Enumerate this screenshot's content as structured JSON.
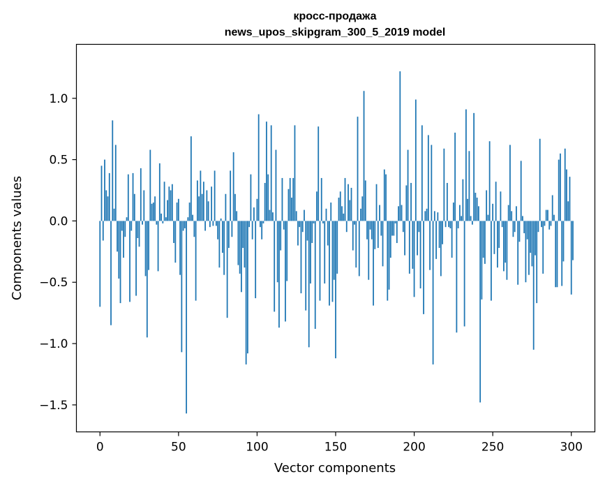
{
  "chart_data": {
    "type": "bar",
    "title_line1": "кросс-продажа",
    "title_line2": "news_upos_skipgram_300_5_2019 model",
    "xlabel": "Vector components",
    "ylabel": "Components values",
    "xlim": [
      -15,
      315
    ],
    "ylim": [
      -1.72,
      1.44
    ],
    "xticks": [
      0,
      50,
      100,
      150,
      200,
      250,
      300
    ],
    "xtick_labels": [
      "0",
      "50",
      "100",
      "150",
      "200",
      "250",
      "300"
    ],
    "yticks": [
      -1.5,
      -1.0,
      -0.5,
      0.0,
      0.5,
      1.0
    ],
    "ytick_labels": [
      "−1.5",
      "−1.0",
      "−0.5",
      "0.0",
      "0.5",
      "1.0"
    ],
    "color": "#1f77b4",
    "values": [
      -0.7,
      0.45,
      -0.16,
      0.5,
      0.25,
      0.2,
      0.39,
      -0.85,
      0.82,
      0.1,
      0.62,
      -0.25,
      -0.47,
      -0.67,
      -0.08,
      -0.3,
      -0.13,
      0.03,
      0.38,
      -0.66,
      -0.08,
      0.39,
      0.22,
      -0.61,
      -0.14,
      -0.21,
      0.43,
      -0.03,
      0.25,
      -0.45,
      -0.95,
      -0.4,
      0.58,
      0.14,
      0.15,
      0.2,
      -0.03,
      -0.41,
      0.47,
      0.06,
      -0.02,
      0.32,
      0.03,
      0.17,
      0.28,
      0.25,
      0.3,
      -0.18,
      -0.34,
      0.15,
      0.18,
      -0.44,
      -1.07,
      -0.08,
      -0.06,
      -1.57,
      0.03,
      0.15,
      0.69,
      0.05,
      -0.13,
      -0.65,
      0.33,
      0.2,
      0.41,
      0.22,
      0.32,
      -0.08,
      0.25,
      0.16,
      -0.05,
      0.28,
      -0.04,
      0.41,
      -0.04,
      -0.15,
      -0.38,
      0.02,
      -0.26,
      -0.44,
      0.22,
      -0.79,
      -0.22,
      0.41,
      -0.13,
      0.56,
      0.22,
      0.08,
      -0.36,
      -0.43,
      -0.58,
      -0.22,
      -0.38,
      -1.17,
      -1.08,
      -0.05,
      0.38,
      -0.15,
      0.11,
      -0.63,
      0.18,
      0.87,
      -0.05,
      -0.15,
      -0.02,
      0.31,
      0.81,
      0.38,
      0.09,
      0.78,
      0.07,
      -0.74,
      0.58,
      -0.5,
      -0.87,
      -0.24,
      0.35,
      -0.07,
      -0.82,
      -0.49,
      0.26,
      0.35,
      0.19,
      0.35,
      0.78,
      0.08,
      -0.2,
      -0.05,
      -0.59,
      -0.09,
      0.09,
      -0.73,
      -0.16,
      -1.03,
      -0.51,
      -0.18,
      -0.02,
      -0.88,
      0.24,
      0.77,
      -0.65,
      0.35,
      -0.02,
      -0.51,
      0.1,
      -0.2,
      -0.69,
      0.15,
      -0.66,
      -0.48,
      -1.12,
      -0.43,
      0.19,
      0.24,
      0.12,
      0.06,
      0.35,
      -0.09,
      0.3,
      0.17,
      0.27,
      -0.24,
      -0.03,
      -0.38,
      0.85,
      -0.45,
      0.1,
      0.2,
      1.06,
      0.33,
      -0.15,
      -0.48,
      -0.07,
      -0.15,
      -0.69,
      -0.23,
      0.3,
      -0.22,
      0.13,
      -0.12,
      -0.37,
      0.42,
      0.38,
      -0.65,
      -0.56,
      -0.3,
      -0.12,
      -0.12,
      -0.02,
      -0.18,
      0.12,
      1.22,
      0.13,
      -0.09,
      -0.28,
      0.29,
      0.58,
      -0.43,
      0.31,
      -0.39,
      -0.62,
      0.99,
      -0.28,
      -0.09,
      -0.55,
      0.78,
      -0.76,
      0.08,
      0.1,
      0.7,
      -0.4,
      0.62,
      -1.17,
      0.08,
      -0.31,
      0.07,
      -0.22,
      -0.45,
      -0.19,
      0.59,
      -0.05,
      0.31,
      -0.05,
      -0.06,
      -0.3,
      0.15,
      0.72,
      -0.91,
      -0.06,
      0.13,
      0.04,
      0.34,
      -0.86,
      0.91,
      0.18,
      0.57,
      0.04,
      -0.03,
      0.88,
      0.23,
      0.19,
      0.12,
      -1.48,
      -0.64,
      -0.3,
      -0.35,
      0.25,
      0.05,
      0.65,
      -0.65,
      0.14,
      -0.27,
      0.32,
      -0.38,
      -0.22,
      0.24,
      -0.05,
      -0.41,
      -0.34,
      -0.48,
      0.13,
      0.62,
      0.08,
      -0.13,
      -0.09,
      0.12,
      -0.52,
      -0.17,
      0.49,
      0.04,
      -0.1,
      -0.5,
      -0.15,
      -0.44,
      -0.26,
      -0.37,
      -1.05,
      -0.28,
      -0.67,
      -0.09,
      0.67,
      -0.05,
      -0.43,
      -0.04,
      0.09,
      0.09,
      -0.07,
      -0.04,
      0.21,
      0.05,
      -0.54,
      -0.54,
      0.5,
      0.55,
      -0.53,
      -0.33,
      0.59,
      0.42,
      0.16,
      0.36,
      -0.6,
      -0.32
    ]
  }
}
